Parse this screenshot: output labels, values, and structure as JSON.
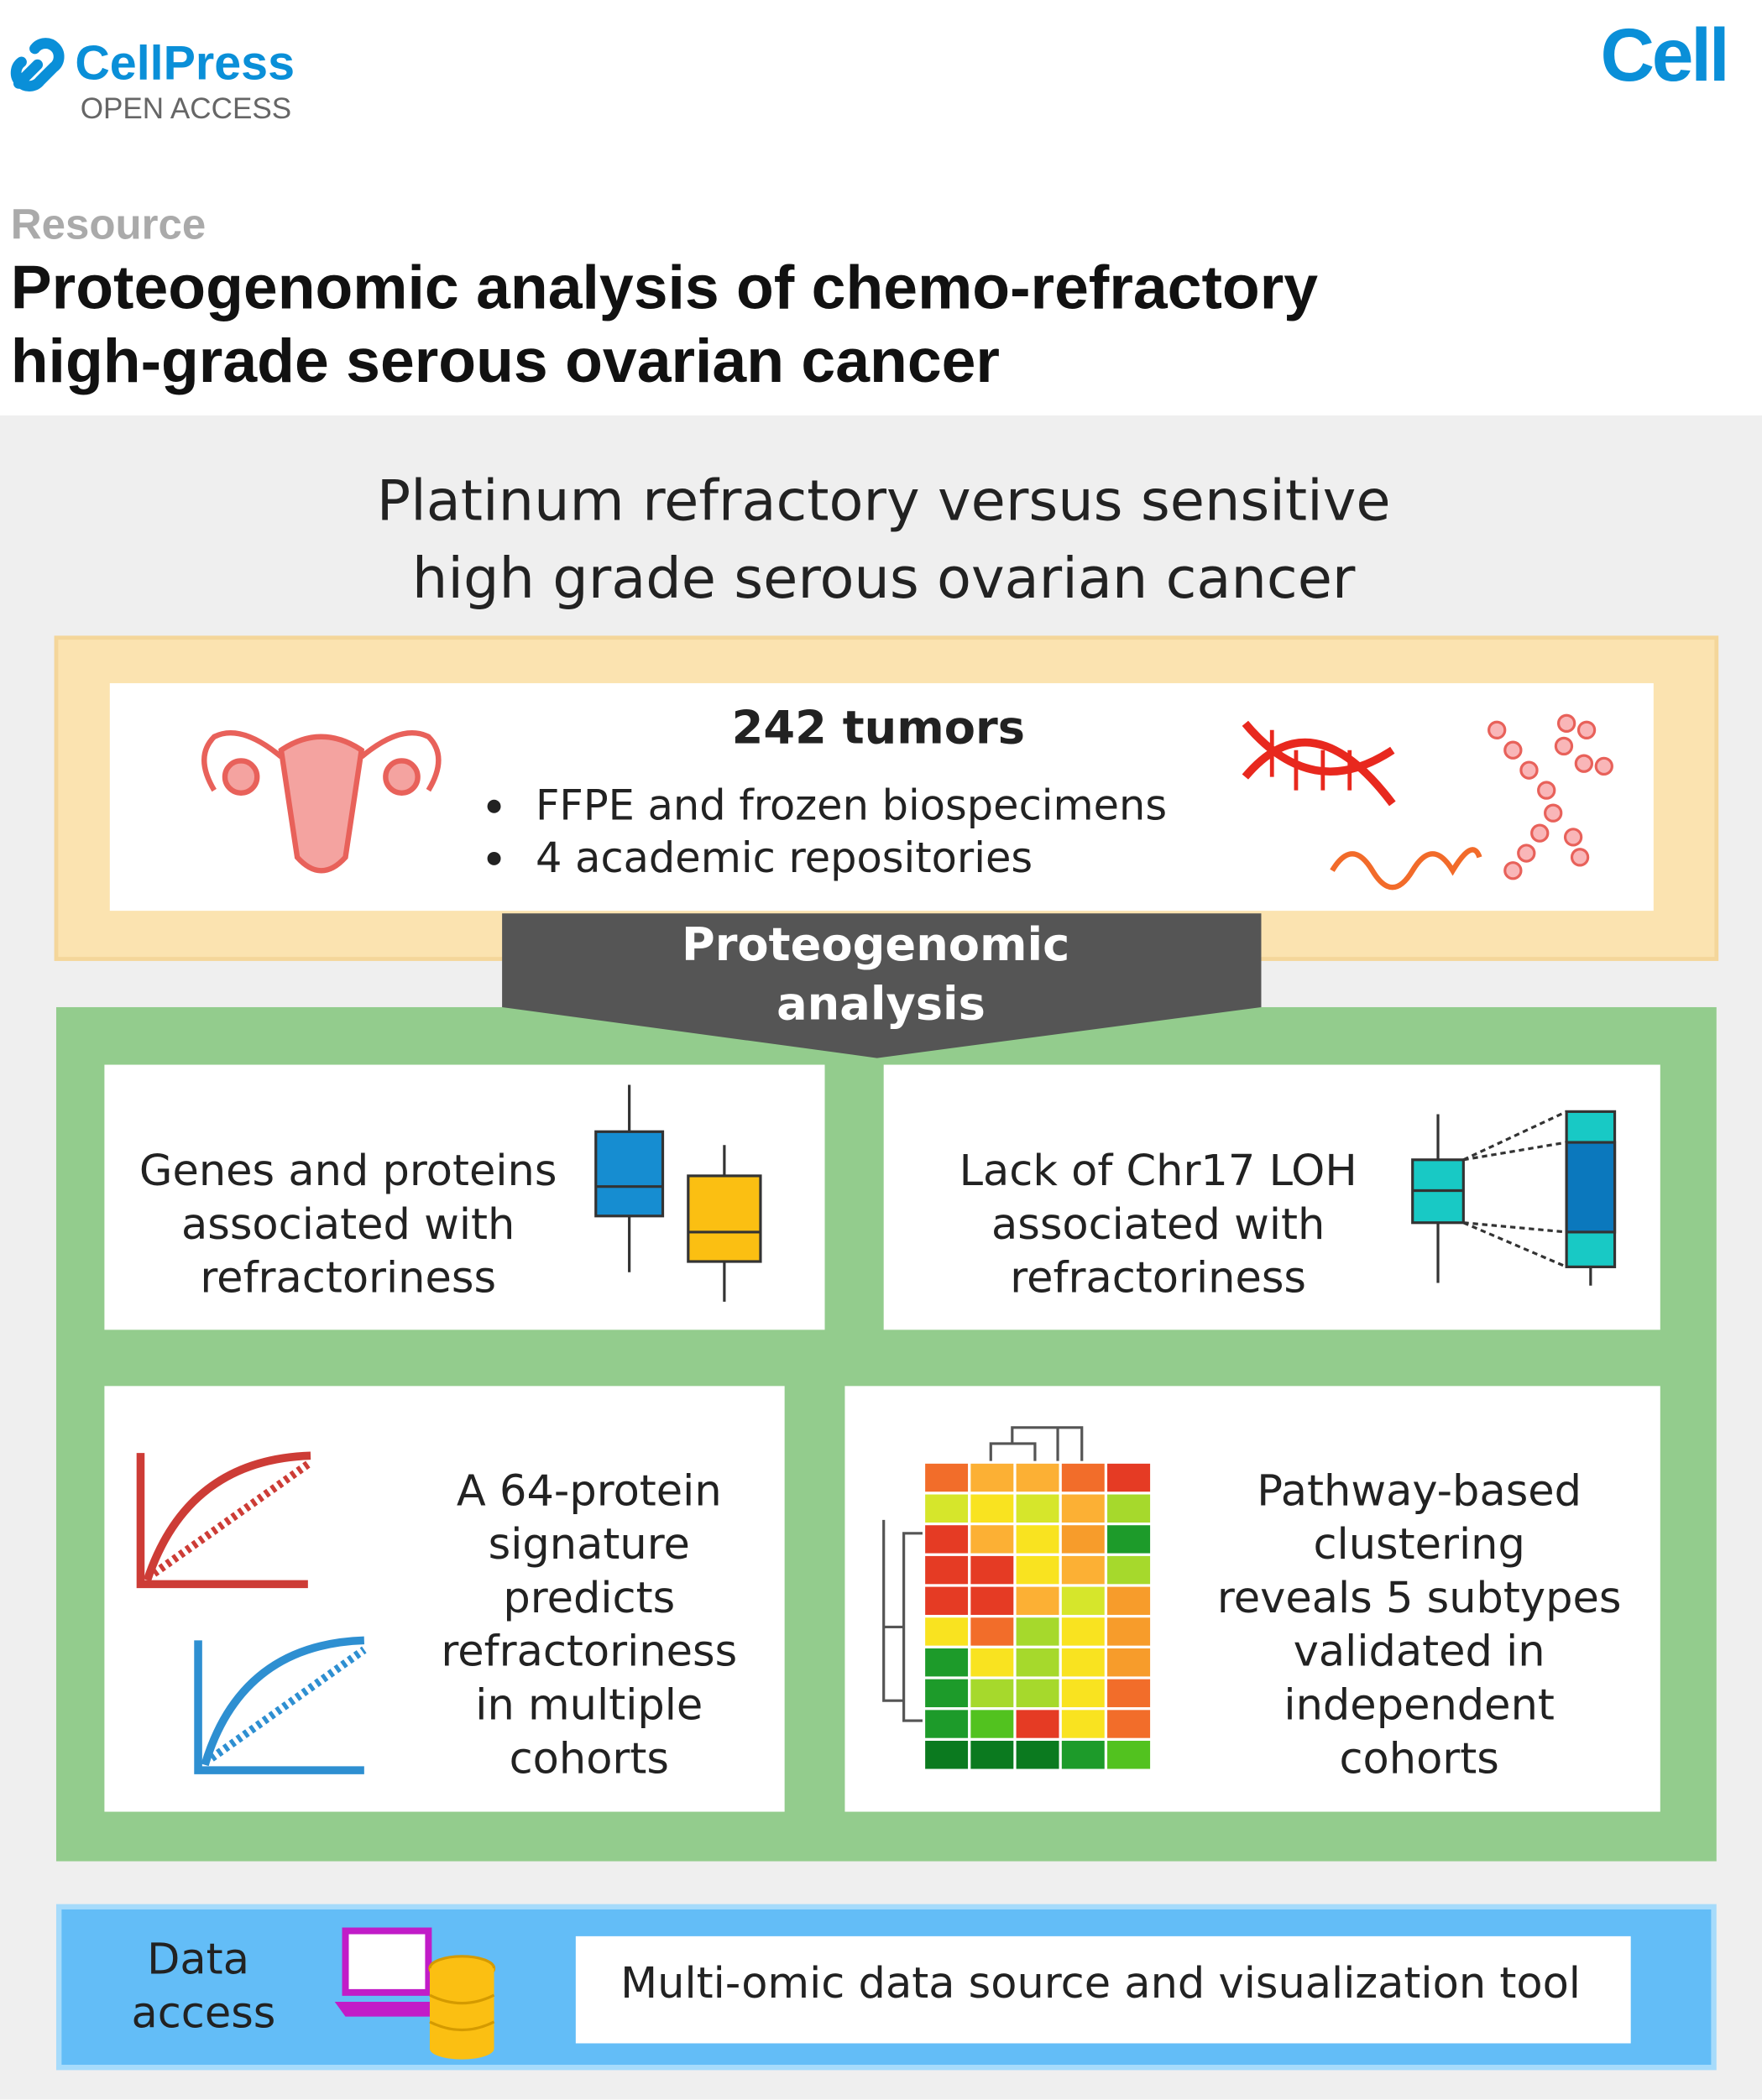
{
  "header": {
    "publisher": "CellPress",
    "access": "OPEN ACCESS",
    "journal": "Cell"
  },
  "article": {
    "type": "Resource",
    "title": [
      "Proteogenomic analysis of chemo-refractory",
      "high-grade serous ovarian cancer"
    ]
  },
  "abstract": {
    "title": [
      "Platinum refractory versus sensitive",
      "high grade serous ovarian cancer"
    ],
    "cohort": {
      "heading": "242 tumors",
      "bullets": [
        "FFPE and frozen biospecimens",
        "4 academic repositories"
      ]
    },
    "banner": [
      "Proteogenomic",
      "analysis"
    ],
    "findings": [
      {
        "lines": [
          "Genes and proteins",
          "associated with",
          "refractoriness"
        ]
      },
      {
        "lines": [
          "Lack of Chr17 LOH",
          "associated with",
          "refractoriness"
        ]
      },
      {
        "lines": [
          "A 64-protein",
          "signature",
          "predicts",
          "refractoriness",
          "in multiple",
          "cohorts"
        ]
      },
      {
        "lines": [
          "Pathway-based",
          "clustering",
          "reveals 5 subtypes",
          "validated in",
          "independent",
          "cohorts"
        ]
      }
    ],
    "data_access": {
      "label": [
        "Data",
        "access"
      ],
      "tool": "Multi-omic data source and visualization tool"
    }
  }
}
